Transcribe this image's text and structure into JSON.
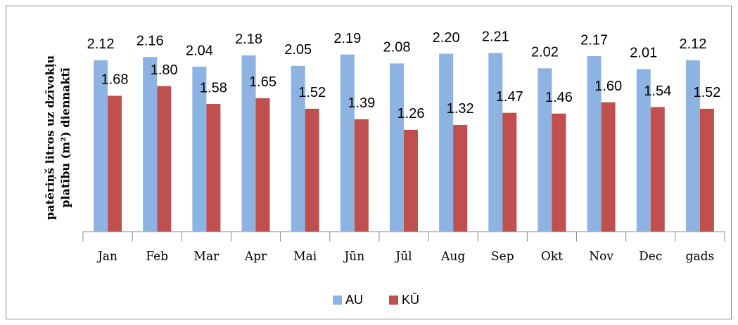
{
  "chart_data": {
    "type": "bar",
    "ylabel": [
      "patēriņš litros uz dzīvokļu",
      "platību (m²) diennaktī"
    ],
    "categories": [
      "Jan",
      "Feb",
      "Mar",
      "Apr",
      "Mai",
      "Jūn",
      "Jūl",
      "Aug",
      "Sep",
      "Okt",
      "Nov",
      "Dec",
      "gads"
    ],
    "series": [
      {
        "name": "AU",
        "color": "#8db3e2",
        "values": [
          2.12,
          2.16,
          2.04,
          2.18,
          2.05,
          2.19,
          2.08,
          2.2,
          2.21,
          2.02,
          2.17,
          2.01,
          2.12
        ],
        "value_labels": [
          "2.12",
          "2.16",
          "2.04",
          "2.18",
          "2.05",
          "2.19",
          "2.08",
          "2.20",
          "2.21",
          "2.02",
          "2.17",
          "2.01",
          "2.12"
        ]
      },
      {
        "name": "KŪ",
        "color": "#c0504d",
        "values": [
          1.68,
          1.8,
          1.58,
          1.65,
          1.52,
          1.39,
          1.26,
          1.32,
          1.47,
          1.46,
          1.6,
          1.54,
          1.52
        ],
        "value_labels": [
          "1.68",
          "1.80",
          "1.58",
          "1.65",
          "1.52",
          "1.39",
          "1.26",
          "1.32",
          "1.47",
          "1.46",
          "1.60",
          "1.54",
          "1.52"
        ]
      }
    ],
    "ylim": [
      0,
      2.5
    ],
    "legend": "bottom"
  }
}
